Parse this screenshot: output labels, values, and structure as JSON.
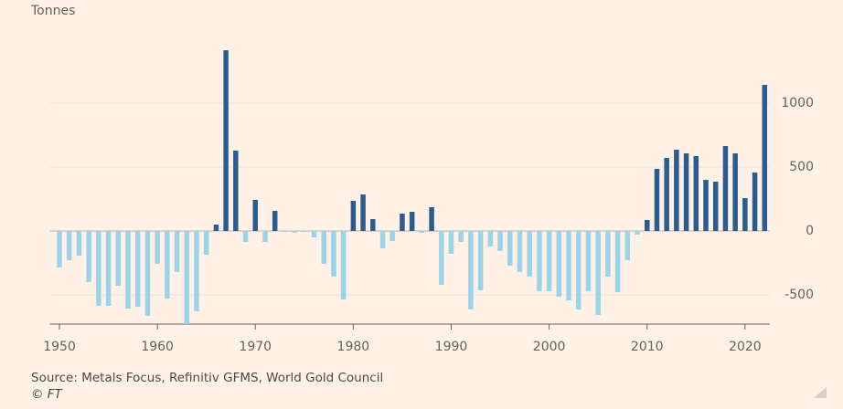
{
  "chart_data": {
    "type": "bar",
    "y_label": "Tonnes",
    "source": "Source: Metals Focus, Refinitiv GFMS, World Gold Council",
    "credit": "© FT",
    "x": [
      1950,
      1951,
      1952,
      1953,
      1954,
      1955,
      1956,
      1957,
      1958,
      1959,
      1960,
      1961,
      1962,
      1963,
      1964,
      1965,
      1966,
      1967,
      1968,
      1969,
      1970,
      1971,
      1972,
      1973,
      1974,
      1975,
      1976,
      1977,
      1978,
      1979,
      1980,
      1981,
      1982,
      1983,
      1984,
      1985,
      1986,
      1987,
      1988,
      1989,
      1990,
      1991,
      1992,
      1993,
      1994,
      1995,
      1996,
      1997,
      1998,
      1999,
      2000,
      2001,
      2002,
      2003,
      2004,
      2005,
      2006,
      2007,
      2008,
      2009,
      2010,
      2011,
      2012,
      2013,
      2014,
      2015,
      2016,
      2017,
      2018,
      2019,
      2020,
      2021,
      2022
    ],
    "values": [
      -286,
      -229,
      -193,
      -400,
      -586,
      -586,
      -429,
      -607,
      -593,
      -664,
      -257,
      -529,
      -321,
      -729,
      -629,
      -186,
      50,
      1414,
      629,
      -86,
      243,
      -86,
      157,
      -7,
      -14,
      -7,
      -50,
      -257,
      -357,
      -536,
      236,
      286,
      93,
      -136,
      -79,
      136,
      150,
      -14,
      186,
      -421,
      -179,
      -86,
      -614,
      -464,
      -121,
      -157,
      -271,
      -321,
      -357,
      -471,
      -471,
      -514,
      -543,
      -614,
      -471,
      -657,
      -357,
      -479,
      -229,
      -29,
      86,
      486,
      571,
      636,
      607,
      586,
      400,
      386,
      664,
      607,
      257,
      457,
      1143
    ],
    "colors": {
      "positive": "#2b5c8f",
      "negative": "#9dd3e8"
    },
    "xlim": [
      1949,
      2023
    ],
    "xticks": [
      1950,
      1960,
      1970,
      1980,
      1990,
      2000,
      2010,
      2020
    ],
    "ylim": [
      -750,
      1500
    ],
    "yticks": [
      1000,
      500,
      0,
      -500
    ],
    "grid": true
  }
}
